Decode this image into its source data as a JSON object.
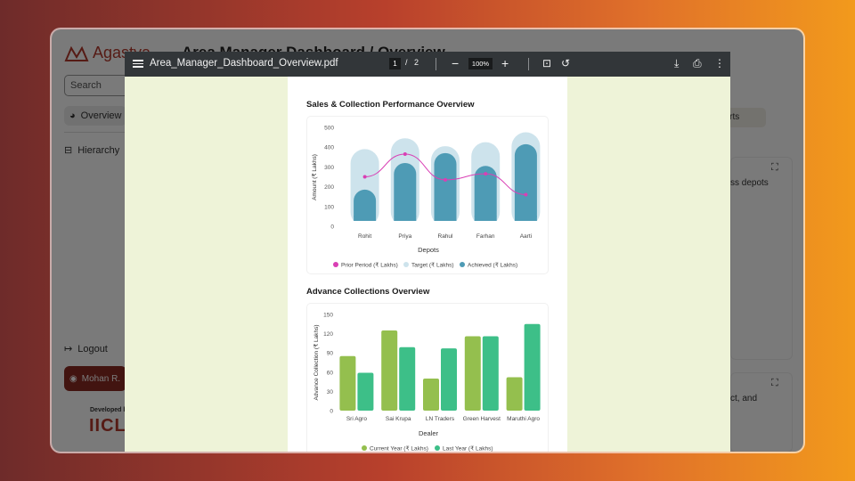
{
  "background": {
    "brand": "Agastya",
    "title": "Area Manager Dashboard / Overview",
    "search_placeholder": "Search",
    "nav": [
      {
        "label": "Overview",
        "icon": "pie-chart-icon"
      },
      {
        "label": "Hierarchy",
        "icon": "hierarchy-icon"
      }
    ],
    "logout": "Logout",
    "user": "Mohan R.",
    "developed_by": "Developed by",
    "dev_logo": "IICL",
    "reports_button": "ports",
    "card1_text": "ss depots",
    "card2_text": "ct, and"
  },
  "viewer": {
    "file_name": "Area_Manager_Dashboard_Overview.pdf",
    "current_page": "1",
    "page_sep": "/",
    "total_pages": "2",
    "zoom": "100%"
  },
  "charts": {
    "sales": {
      "title": "Sales & Collection Performance Overview",
      "xlabel": "Depots",
      "ylabel": "Amount (₹ Lakhs)",
      "legend": [
        "Prior Period (₹ Lakhs)",
        "Target (₹ Lakhs)",
        "Achieved (₹ Lakhs)"
      ],
      "colors": {
        "prior": "#d93fb4",
        "target": "#cde3ec",
        "achieved": "#4e9bb5"
      }
    },
    "advance": {
      "title": "Advance Collections Overview",
      "xlabel": "Dealer",
      "ylabel": "Advance Collection (₹ Lakhs)",
      "legend": [
        "Current Year (₹ Lakhs)",
        "Last Year (₹ Lakhs)"
      ],
      "colors": {
        "current": "#94bf4e",
        "last": "#3dbf88"
      }
    }
  },
  "chart_data": [
    {
      "type": "bar",
      "title": "Sales & Collection Performance Overview",
      "xlabel": "Depots",
      "ylabel": "Amount (₹ Lakhs)",
      "categories": [
        "Rohit",
        "Priya",
        "Rahul",
        "Farhan",
        "Aarti"
      ],
      "ylim": [
        0,
        500
      ],
      "yticks": [
        0,
        100,
        200,
        300,
        400,
        500
      ],
      "series": [
        {
          "name": "Prior Period (₹ Lakhs)",
          "type": "line",
          "values": [
            250,
            365,
            235,
            265,
            160
          ]
        },
        {
          "name": "Target (₹ Lakhs)",
          "values": [
            390,
            445,
            405,
            425,
            475
          ]
        },
        {
          "name": "Achieved (₹ Lakhs)",
          "values": [
            185,
            320,
            370,
            305,
            415
          ]
        }
      ],
      "grid": false,
      "legend_position": "bottom"
    },
    {
      "type": "bar",
      "title": "Advance Collections Overview",
      "xlabel": "Dealer",
      "ylabel": "Advance Collection (₹ Lakhs)",
      "categories": [
        "Sri Agro",
        "Sai Krupa",
        "LN Traders",
        "Green Harvest",
        "Maruthi Agro"
      ],
      "ylim": [
        0,
        150
      ],
      "yticks": [
        0,
        30,
        60,
        90,
        120,
        150
      ],
      "series": [
        {
          "name": "Current Year (₹ Lakhs)",
          "values": [
            85,
            125,
            50,
            116,
            52
          ]
        },
        {
          "name": "Last Year (₹ Lakhs)",
          "values": [
            59,
            99,
            97,
            116,
            135
          ]
        }
      ],
      "grid": false,
      "legend_position": "bottom"
    }
  ]
}
